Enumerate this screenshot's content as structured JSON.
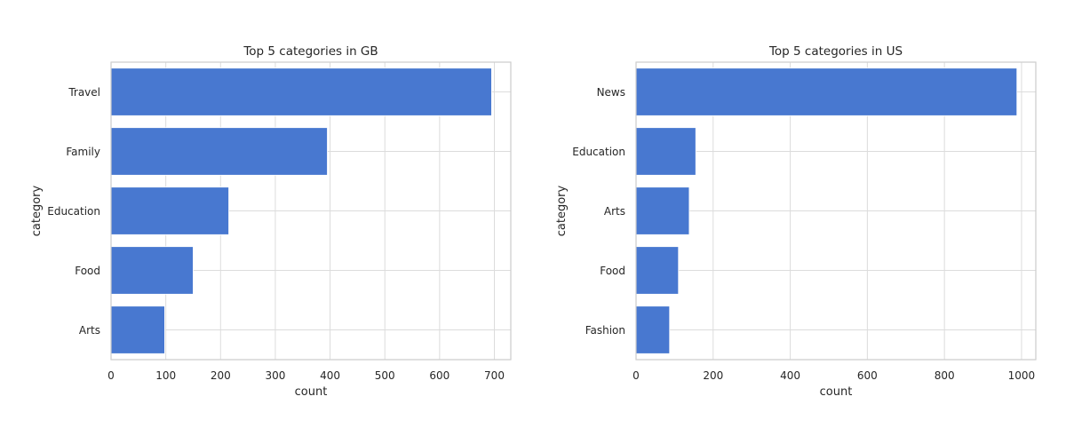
{
  "chart_data": [
    {
      "type": "bar",
      "orientation": "horizontal",
      "title": "Top 5 categories in GB",
      "xlabel": "count",
      "ylabel": "category",
      "categories": [
        "Travel",
        "Family",
        "Education",
        "Food",
        "Arts"
      ],
      "values": [
        695,
        395,
        215,
        150,
        98
      ],
      "xlim": [
        0,
        730
      ],
      "xticks": [
        0,
        100,
        200,
        300,
        400,
        500,
        600,
        700
      ],
      "grid": true,
      "color": "#4878d0"
    },
    {
      "type": "bar",
      "orientation": "horizontal",
      "title": "Top 5 categories in US",
      "xlabel": "count",
      "ylabel": "category",
      "categories": [
        "News",
        "Education",
        "Arts",
        "Food",
        "Fashion"
      ],
      "values": [
        988,
        155,
        138,
        110,
        87
      ],
      "xlim": [
        0,
        1037
      ],
      "xticks": [
        0,
        200,
        400,
        600,
        800,
        1000
      ],
      "grid": true,
      "color": "#4878d0"
    }
  ]
}
